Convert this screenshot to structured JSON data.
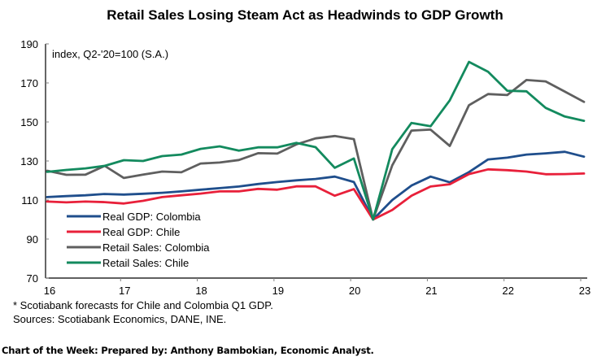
{
  "chart_data": {
    "type": "line",
    "title": "Retail Sales Losing Steam Act as Headwinds to GDP Growth",
    "unit_label": "index, Q2-'20=100 (S.A.)",
    "xlabel": "",
    "ylabel": "",
    "ylim": [
      70,
      190
    ],
    "yticks": [
      70,
      90,
      110,
      130,
      150,
      170,
      190
    ],
    "xticks": [
      "16",
      "17",
      "18",
      "19",
      "20",
      "21",
      "22",
      "23"
    ],
    "x": [
      "2016Q1",
      "2016Q2",
      "2016Q3",
      "2016Q4",
      "2017Q1",
      "2017Q2",
      "2017Q3",
      "2017Q4",
      "2018Q1",
      "2018Q2",
      "2018Q3",
      "2018Q4",
      "2019Q1",
      "2019Q2",
      "2019Q3",
      "2019Q4",
      "2020Q1",
      "2020Q2",
      "2020Q3",
      "2020Q4",
      "2021Q1",
      "2021Q2",
      "2021Q3",
      "2021Q4",
      "2022Q1",
      "2022Q2",
      "2022Q3",
      "2022Q4",
      "2023Q1"
    ],
    "grid": false,
    "legend_position": "bottom-left",
    "series": [
      {
        "name": "Real GDP: Colombia",
        "color": "#1f4e8c",
        "values": [
          111.5,
          112.0,
          112.4,
          113.1,
          112.8,
          113.2,
          113.7,
          114.4,
          115.3,
          116.1,
          116.9,
          118.2,
          119.2,
          120.1,
          120.8,
          122.0,
          119.2,
          100.0,
          110.0,
          117.4,
          122.0,
          119.1,
          124.3,
          130.8,
          131.7,
          133.3,
          133.9,
          134.7,
          132.2
        ]
      },
      {
        "name": "Real GDP: Chile",
        "color": "#e8203a",
        "values": [
          109.2,
          108.8,
          109.2,
          108.9,
          108.2,
          109.6,
          111.5,
          112.4,
          113.3,
          114.4,
          114.4,
          115.7,
          115.3,
          117.0,
          117.0,
          112.2,
          115.6,
          100.0,
          104.9,
          112.2,
          116.9,
          118.1,
          123.3,
          125.7,
          125.3,
          124.6,
          123.2,
          123.3,
          123.6
        ]
      },
      {
        "name": "Retail Sales: Colombia",
        "color": "#5f5f5f",
        "values": [
          125.0,
          122.9,
          123.0,
          127.5,
          121.3,
          123.0,
          124.6,
          124.2,
          128.7,
          129.2,
          130.5,
          134.0,
          133.8,
          138.5,
          141.6,
          142.8,
          141.2,
          100.0,
          127.8,
          145.6,
          146.1,
          137.7,
          158.6,
          164.3,
          163.8,
          171.5,
          170.8,
          165.6,
          160.3
        ]
      },
      {
        "name": "Retail Sales: Chile",
        "color": "#138a5e",
        "values": [
          124.4,
          125.4,
          126.2,
          127.5,
          130.4,
          130.0,
          132.5,
          133.3,
          136.2,
          137.5,
          135.3,
          137.0,
          137.0,
          139.3,
          137.1,
          126.5,
          131.3,
          100.0,
          136.1,
          149.5,
          147.8,
          161.1,
          180.8,
          175.7,
          166.0,
          165.7,
          157.2,
          152.8,
          150.6
        ]
      }
    ]
  },
  "footnote": "* Scotiabank forecasts for Chile and Colombia Q1 GDP.",
  "sources": "Sources: Scotiabank Economics, DANE, INE.",
  "credit": "Chart of the Week:  Prepared by: Anthony Bambokian, Economic Analyst."
}
